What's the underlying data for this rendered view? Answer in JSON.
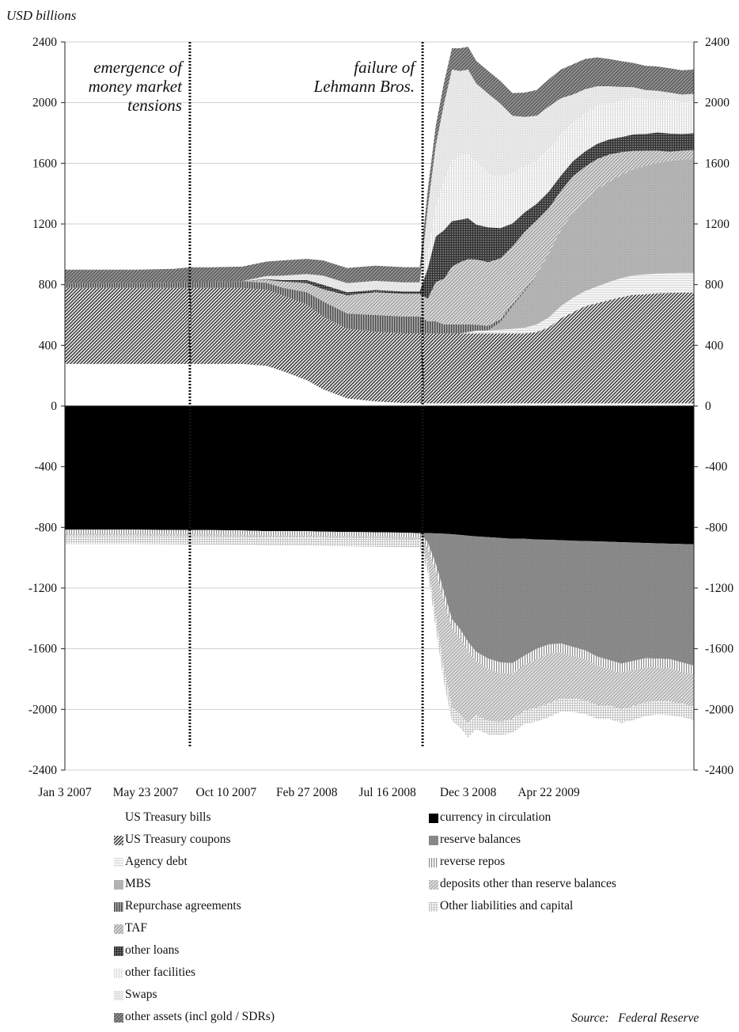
{
  "chart_data": {
    "type": "area",
    "ylabel": "USD billions",
    "ylim": [
      -2400,
      2400
    ],
    "yticks": [
      2400,
      2000,
      1600,
      1200,
      800,
      400,
      0,
      -400,
      -800,
      -1200,
      -1600,
      -2000,
      -2400
    ],
    "ytick_labels": [
      "2400",
      "2000",
      "1600",
      "1200",
      "800",
      "400",
      "0",
      "-400",
      "-800",
      "-1200",
      "-1600",
      "-2000",
      "-2400"
    ],
    "xlim": [
      "2007-01-03",
      "2009-12-30"
    ],
    "xtick_labels": [
      "Jan 3 2007",
      "May 23 2007",
      "Oct 10 2007",
      "Feb 27 2008",
      "Jul 16 2008",
      "Dec 3 2008",
      "Apr 22 2009"
    ],
    "xtick_dates": [
      "2007-01-03",
      "2007-05-23",
      "2007-10-10",
      "2008-02-27",
      "2008-07-16",
      "2008-12-03",
      "2009-04-22"
    ],
    "annotations": [
      {
        "date": "2007-08-08",
        "lines": [
          "emergence of",
          "money market",
          "tensions"
        ]
      },
      {
        "date": "2008-09-15",
        "lines": [
          "failure of",
          "Lehmann Bros."
        ]
      }
    ],
    "x": [
      "2007-01-03",
      "2007-03-07",
      "2007-05-09",
      "2007-07-11",
      "2007-08-08",
      "2007-09-12",
      "2007-11-07",
      "2007-12-19",
      "2008-01-16",
      "2008-02-27",
      "2008-03-26",
      "2008-05-07",
      "2008-06-25",
      "2008-08-13",
      "2008-09-10",
      "2008-09-24",
      "2008-10-08",
      "2008-10-22",
      "2008-11-05",
      "2008-11-19",
      "2008-12-03",
      "2008-12-17",
      "2009-01-07",
      "2009-01-28",
      "2009-02-18",
      "2009-03-11",
      "2009-04-01",
      "2009-04-22",
      "2009-05-13",
      "2009-06-03",
      "2009-06-24",
      "2009-07-15",
      "2009-08-05",
      "2009-08-26",
      "2009-09-16",
      "2009-10-07",
      "2009-10-28",
      "2009-11-18",
      "2009-12-09",
      "2009-12-30"
    ],
    "assets": [
      {
        "name": "US Treasury bills",
        "values": [
          277,
          277,
          277,
          277,
          277,
          277,
          277,
          265,
          230,
          170,
          110,
          50,
          30,
          20,
          20,
          18,
          18,
          18,
          18,
          18,
          18,
          18,
          18,
          18,
          18,
          18,
          18,
          18,
          18,
          18,
          18,
          18,
          18,
          18,
          18,
          18,
          18,
          18,
          18,
          18
        ]
      },
      {
        "name": "US Treasury coupons",
        "values": [
          502,
          502,
          502,
          502,
          502,
          502,
          502,
          502,
          500,
          500,
          480,
          460,
          460,
          460,
          460,
          460,
          460,
          460,
          460,
          460,
          460,
          460,
          460,
          460,
          460,
          460,
          470,
          500,
          560,
          600,
          640,
          660,
          680,
          700,
          715,
          720,
          725,
          728,
          730,
          730
        ]
      },
      {
        "name": "Agency debt",
        "values": [
          0,
          0,
          0,
          0,
          0,
          0,
          0,
          0,
          0,
          0,
          0,
          0,
          0,
          0,
          0,
          0,
          0,
          0,
          0,
          0,
          10,
          18,
          20,
          25,
          30,
          38,
          50,
          65,
          80,
          95,
          100,
          110,
          120,
          125,
          128,
          130,
          130,
          130,
          130,
          130
        ]
      },
      {
        "name": "MBS",
        "values": [
          0,
          0,
          0,
          0,
          0,
          0,
          0,
          0,
          0,
          0,
          0,
          0,
          0,
          0,
          0,
          0,
          0,
          0,
          0,
          0,
          0,
          0,
          0,
          50,
          150,
          240,
          320,
          420,
          500,
          560,
          600,
          640,
          660,
          680,
          700,
          715,
          730,
          740,
          745,
          750
        ]
      },
      {
        "name": "Repurchase agreements",
        "values": [
          30,
          30,
          30,
          35,
          40,
          40,
          45,
          45,
          50,
          80,
          100,
          100,
          110,
          110,
          110,
          80,
          80,
          60,
          60,
          60,
          50,
          40,
          30,
          20,
          15,
          10,
          5,
          0,
          0,
          0,
          0,
          0,
          0,
          0,
          0,
          0,
          0,
          0,
          0,
          0
        ]
      },
      {
        "name": "TAF",
        "values": [
          0,
          0,
          0,
          0,
          0,
          0,
          0,
          20,
          40,
          60,
          80,
          120,
          150,
          150,
          150,
          150,
          260,
          300,
          380,
          410,
          430,
          430,
          420,
          400,
          380,
          380,
          360,
          300,
          260,
          240,
          220,
          200,
          180,
          150,
          120,
          100,
          80,
          60,
          60,
          60
        ]
      },
      {
        "name": "other loans",
        "values": [
          0,
          0,
          0,
          0,
          0,
          0,
          0,
          5,
          10,
          20,
          30,
          20,
          15,
          15,
          15,
          200,
          300,
          320,
          300,
          280,
          270,
          230,
          230,
          200,
          150,
          130,
          110,
          110,
          100,
          100,
          100,
          100,
          100,
          100,
          110,
          110,
          120,
          120,
          110,
          110
        ]
      },
      {
        "name": "other facilities",
        "values": [
          0,
          0,
          0,
          0,
          0,
          0,
          0,
          0,
          0,
          0,
          0,
          0,
          0,
          0,
          0,
          100,
          200,
          330,
          400,
          420,
          430,
          410,
          350,
          340,
          330,
          310,
          280,
          280,
          270,
          260,
          250,
          250,
          240,
          240,
          240,
          230,
          220,
          220,
          210,
          210
        ]
      },
      {
        "name": "Swaps",
        "values": [
          0,
          0,
          0,
          0,
          0,
          0,
          0,
          20,
          30,
          40,
          60,
          60,
          60,
          60,
          60,
          300,
          400,
          500,
          600,
          560,
          550,
          520,
          530,
          480,
          380,
          320,
          300,
          280,
          240,
          180,
          160,
          130,
          110,
          90,
          70,
          60,
          55,
          50,
          50,
          50
        ]
      },
      {
        "name": "other assets (incl gold / SDRs)",
        "values": [
          90,
          90,
          90,
          90,
          95,
          95,
          95,
          95,
          100,
          100,
          100,
          100,
          100,
          100,
          100,
          120,
          130,
          140,
          140,
          150,
          150,
          150,
          150,
          150,
          150,
          160,
          170,
          180,
          190,
          200,
          200,
          190,
          180,
          170,
          160,
          160,
          160,
          160,
          160,
          160
        ]
      }
    ],
    "liabilities": [
      {
        "name": "currency in circulation",
        "values": [
          815,
          815,
          815,
          817,
          818,
          818,
          820,
          825,
          825,
          825,
          828,
          830,
          832,
          835,
          838,
          838,
          840,
          842,
          845,
          850,
          855,
          860,
          865,
          870,
          875,
          875,
          880,
          882,
          885,
          888,
          890,
          892,
          895,
          898,
          900,
          903,
          905,
          908,
          910,
          912
        ]
      },
      {
        "name": "reserve balances",
        "values": [
          0,
          0,
          0,
          0,
          0,
          0,
          0,
          0,
          0,
          0,
          0,
          0,
          0,
          0,
          0,
          60,
          200,
          380,
          560,
          620,
          700,
          760,
          800,
          820,
          820,
          770,
          720,
          690,
          680,
          700,
          720,
          760,
          780,
          800,
          780,
          760,
          760,
          760,
          780,
          800
        ]
      },
      {
        "name": "reverse repos",
        "values": [
          30,
          30,
          30,
          30,
          30,
          30,
          30,
          30,
          30,
          30,
          30,
          30,
          30,
          30,
          30,
          40,
          50,
          60,
          60,
          60,
          60,
          60,
          70,
          70,
          70,
          60,
          70,
          60,
          60,
          60,
          60,
          60,
          60,
          60,
          60,
          60,
          60,
          60,
          60,
          60
        ]
      },
      {
        "name": "deposits other than reserve balances",
        "values": [
          10,
          10,
          10,
          10,
          10,
          10,
          10,
          10,
          10,
          10,
          10,
          10,
          10,
          10,
          10,
          100,
          300,
          450,
          520,
          500,
          480,
          360,
          340,
          320,
          300,
          300,
          320,
          330,
          300,
          280,
          270,
          260,
          240,
          240,
          240,
          230,
          220,
          220,
          210,
          210
        ]
      },
      {
        "name": "Other liabilities and capital",
        "values": [
          55,
          55,
          55,
          55,
          55,
          55,
          55,
          55,
          55,
          55,
          55,
          55,
          55,
          55,
          55,
          60,
          80,
          90,
          90,
          90,
          90,
          90,
          90,
          90,
          90,
          90,
          90,
          90,
          90,
          90,
          90,
          90,
          90,
          90,
          90,
          90,
          90,
          90,
          90,
          90
        ]
      }
    ],
    "legend": {
      "left": [
        "US Treasury bills",
        "US Treasury coupons",
        "Agency debt",
        "MBS",
        "Repurchase agreements",
        "TAF",
        "other loans",
        "other facilities",
        "Swaps",
        "other assets (incl gold / SDRs)"
      ],
      "right": [
        "currency in circulation",
        "reserve balances",
        "reverse repos",
        "deposits other than reserve balances",
        "Other liabilities and capital"
      ]
    },
    "source": "Source:   Federal Reserve"
  }
}
